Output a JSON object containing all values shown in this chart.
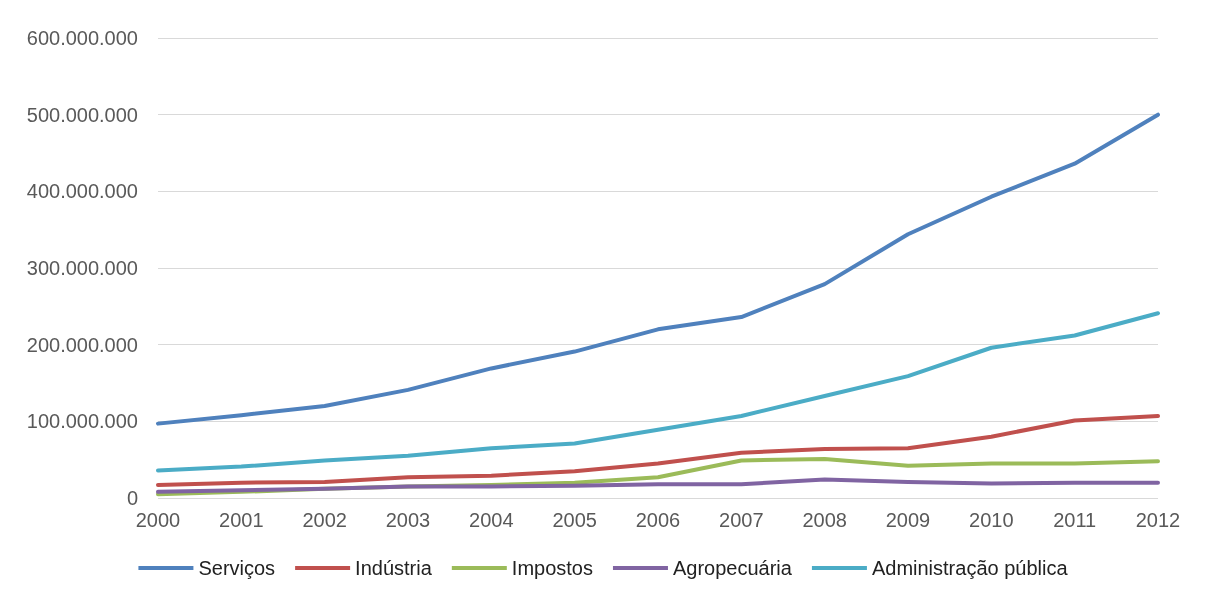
{
  "chart_data": {
    "type": "line",
    "categories": [
      "2000",
      "2001",
      "2002",
      "2003",
      "2004",
      "2005",
      "2006",
      "2007",
      "2008",
      "2009",
      "2010",
      "2011",
      "2012"
    ],
    "series": [
      {
        "name": "Serviços",
        "color": "#4f81bd",
        "values": [
          97000000,
          108000000,
          120000000,
          141000000,
          169000000,
          191000000,
          220000000,
          236000000,
          279000000,
          344000000,
          393000000,
          436000000,
          500000000
        ]
      },
      {
        "name": "Indústria",
        "color": "#c0504d",
        "values": [
          17000000,
          20000000,
          21000000,
          27000000,
          29000000,
          35000000,
          45000000,
          59000000,
          64000000,
          65000000,
          80000000,
          101000000,
          107000000
        ]
      },
      {
        "name": "Impostos",
        "color": "#9bbb59",
        "values": [
          5000000,
          8000000,
          12000000,
          15000000,
          17000000,
          20000000,
          27000000,
          49000000,
          51000000,
          42000000,
          45000000,
          45000000,
          48000000
        ]
      },
      {
        "name": "Agropecuária",
        "color": "#8064a2",
        "values": [
          8000000,
          10000000,
          12000000,
          15000000,
          15000000,
          16000000,
          18000000,
          18000000,
          24000000,
          21000000,
          19000000,
          20000000,
          20000000
        ]
      },
      {
        "name": "Administração pública",
        "color": "#4bacc6",
        "values": [
          36000000,
          41000000,
          49000000,
          55000000,
          65000000,
          71000000,
          89000000,
          107000000,
          133000000,
          159000000,
          196000000,
          212000000,
          241000000
        ]
      }
    ],
    "ylim": [
      0,
      600000000
    ],
    "yticks": [
      0,
      {
        "value": 100000000,
        "label": "100.000.000"
      },
      {
        "value": 200000000,
        "label": "200.000.000"
      },
      {
        "value": 300000000,
        "label": "300.000.000"
      },
      {
        "value": 400000000,
        "label": "400.000.000"
      },
      {
        "value": 500000000,
        "label": "500.000.000"
      },
      {
        "value": 600000000,
        "label": "600.000.000"
      }
    ],
    "grid": "y",
    "legend": "bottom",
    "marker": "none",
    "line_style": "solid"
  }
}
